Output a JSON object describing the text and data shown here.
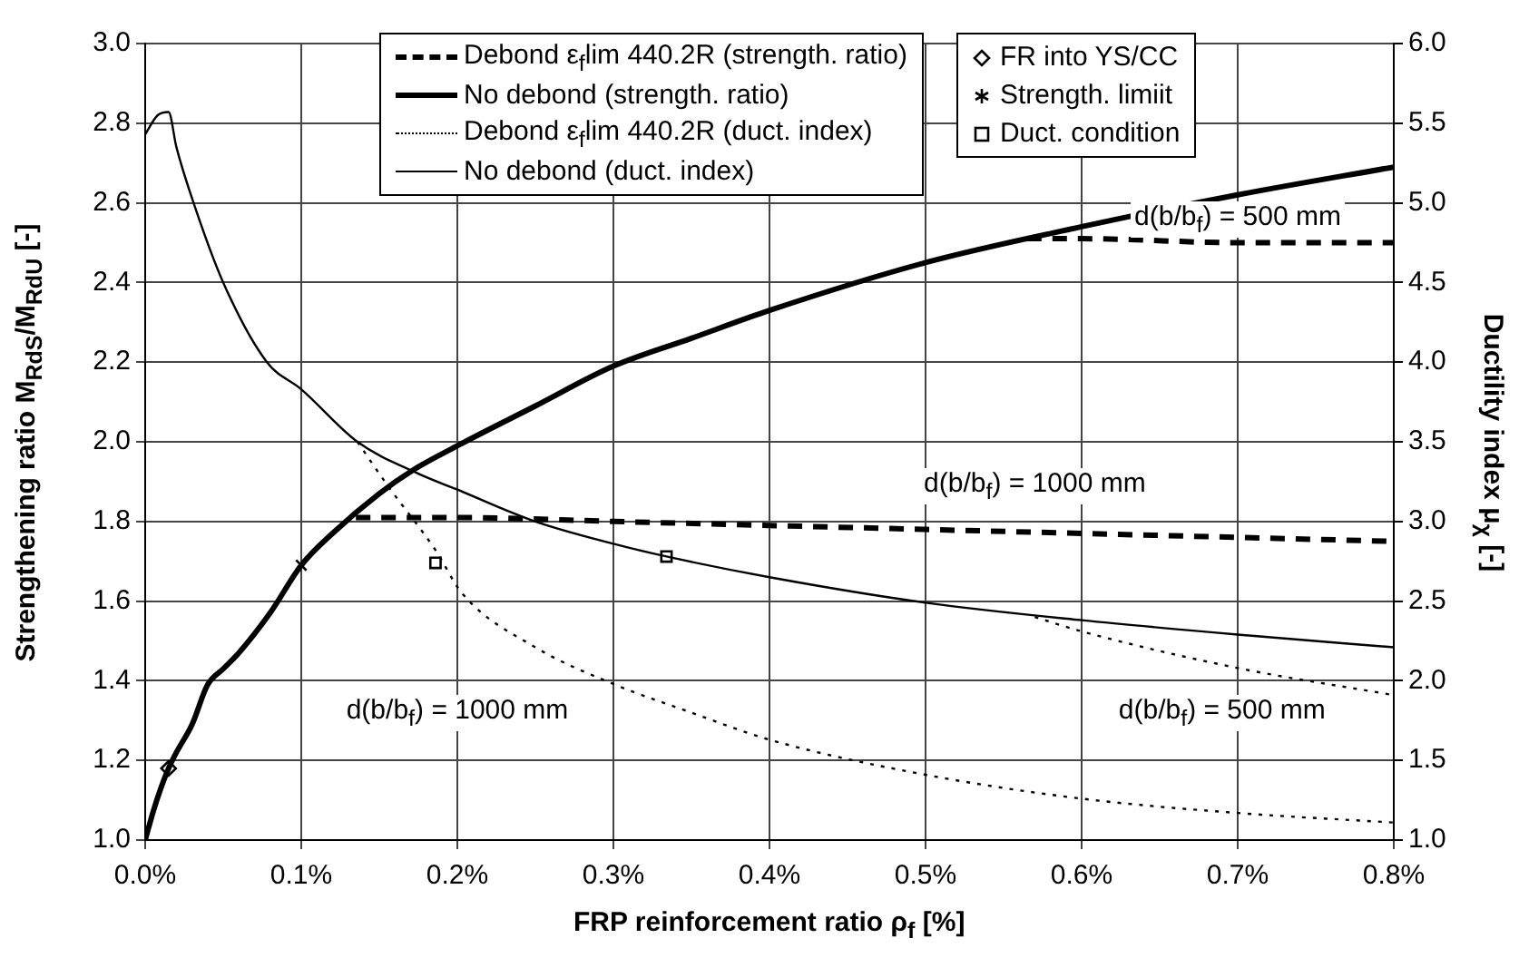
{
  "chart_data": {
    "type": "line",
    "xlabel": "FRP reinforcement ratio ρ$_{f}$ [%]",
    "ylabel": "Strengthening ratio M$_{RdS}$/M$_{RdU}$ [-]",
    "y2label": "Ductility index μ$_{χ}$ [-]",
    "xlim": [
      0,
      0.8
    ],
    "xticks": [
      {
        "value": 0,
        "label": "0.0%"
      },
      {
        "value": 0.1,
        "label": "0.1%"
      },
      {
        "value": 0.2,
        "label": "0.2%"
      },
      {
        "value": 0.3,
        "label": "0.3%"
      },
      {
        "value": 0.4,
        "label": "0.4%"
      },
      {
        "value": 0.5,
        "label": "0.5%"
      },
      {
        "value": 0.6,
        "label": "0.6%"
      },
      {
        "value": 0.7,
        "label": "0.7%"
      },
      {
        "value": 0.8,
        "label": "0.8%"
      }
    ],
    "ylim": [
      1,
      3
    ],
    "yticks": [
      {
        "value": 1,
        "label": "1.0"
      },
      {
        "value": 1.2,
        "label": "1.2"
      },
      {
        "value": 1.4,
        "label": "1.4"
      },
      {
        "value": 1.6,
        "label": "1.6"
      },
      {
        "value": 1.8,
        "label": "1.8"
      },
      {
        "value": 2,
        "label": "2.0"
      },
      {
        "value": 2.2,
        "label": "2.2"
      },
      {
        "value": 2.4,
        "label": "2.4"
      },
      {
        "value": 2.6,
        "label": "2.6"
      },
      {
        "value": 2.8,
        "label": "2.8"
      },
      {
        "value": 3,
        "label": "3.0"
      }
    ],
    "y2lim": [
      1,
      6
    ],
    "y2ticks": [
      {
        "value": 1,
        "label": "1.0"
      },
      {
        "value": 1.5,
        "label": "1.5"
      },
      {
        "value": 2,
        "label": "2.0"
      },
      {
        "value": 2.5,
        "label": "2.5"
      },
      {
        "value": 3,
        "label": "3.0"
      },
      {
        "value": 3.5,
        "label": "3.5"
      },
      {
        "value": 4,
        "label": "4.0"
      },
      {
        "value": 4.5,
        "label": "4.5"
      },
      {
        "value": 5,
        "label": "5.0"
      },
      {
        "value": 5.5,
        "label": "5.5"
      },
      {
        "value": 6,
        "label": "6.0"
      }
    ],
    "grid": true,
    "legend": "top",
    "series": [
      {
        "name": "Debond ε$_{f}$lim 440.2R (strength. ratio)",
        "color": "#000000",
        "line_style": "dashed",
        "marker": "none",
        "x": [
          0.135,
          0.2,
          0.3,
          0.4,
          0.5,
          0.6,
          0.7,
          0.8,
          0.7,
          0.565,
          0.6,
          0.7,
          0.8
        ],
        "values": [
          1.81,
          1.81,
          1.8,
          1.79,
          1.78,
          1.77,
          1.76,
          1.75,
          null,
          2.51,
          2.51,
          2.5,
          2.5
        ]
      },
      {
        "name": "No debond (strength. ratio)",
        "color": "#000000",
        "line_style": "solid",
        "marker": "none",
        "x": [
          0,
          0.005,
          0.01,
          0.015,
          0.02,
          0.03,
          0.04,
          0.05,
          0.06,
          0.08,
          0.1,
          0.12,
          0.15,
          0.172,
          0.2,
          0.25,
          0.3,
          0.35,
          0.4,
          0.5,
          0.6,
          0.7,
          0.8
        ],
        "values": [
          1,
          1.07,
          1.13,
          1.18,
          1.22,
          1.29,
          1.39,
          1.43,
          1.47,
          1.57,
          1.69,
          1.77,
          1.87,
          1.93,
          1.99,
          2.09,
          2.19,
          2.26,
          2.33,
          2.45,
          2.54,
          2.62,
          2.69
        ]
      },
      {
        "name": "Debond ε$_{f}$lim 440.2R (duct. index)",
        "axis": "y2",
        "color": "#000000",
        "line_style": "dotted",
        "marker": "none",
        "x": [
          0.136,
          0.155,
          0.186,
          0.203,
          0.25,
          0.3,
          0.35,
          0.4,
          0.5,
          0.6,
          0.7,
          0.8,
          0.7,
          0.57,
          0.6,
          0.7,
          0.8
        ],
        "values": [
          3.5,
          3.23,
          2.82,
          2.55,
          2.21,
          1.98,
          1.8,
          1.63,
          1.41,
          1.26,
          1.17,
          1.11,
          null,
          2.4,
          2.31,
          2.08,
          1.91
        ]
      },
      {
        "name": "No debond (duct. index)",
        "axis": "y2",
        "color": "#000000",
        "line_style": "solid",
        "marker": "none",
        "x": [
          0,
          0.008,
          0.015,
          0.02,
          0.031,
          0.05,
          0.078,
          0.1,
          0.136,
          0.175,
          0.2,
          0.25,
          0.3,
          0.334,
          0.4,
          0.5,
          0.6,
          0.7,
          0.8
        ],
        "values": [
          5.43,
          5.55,
          5.57,
          5.35,
          5,
          4.5,
          4,
          3.83,
          3.5,
          3.3,
          3.2,
          3,
          2.86,
          2.78,
          2.65,
          2.49,
          2.38,
          2.29,
          2.21
        ]
      },
      {
        "name": "FR into YS/CC",
        "type": "scatter",
        "color": "#000000",
        "marker": "diamond",
        "x": [
          0.015
        ],
        "values": [
          1.18
        ]
      },
      {
        "name": "Strength. limiit",
        "type": "scatter",
        "color": "#000000",
        "marker": "cross",
        "x": [
          0.1
        ],
        "values": [
          1.69
        ]
      },
      {
        "name": "Duct. condition",
        "type": "scatter",
        "axis": "y2",
        "color": "#000000",
        "marker": "square",
        "x": [
          0.186,
          0.334
        ],
        "values": [
          2.74,
          2.78
        ]
      }
    ],
    "annotations": [
      "d(b/b$_{f}$) = 500 mm",
      "d(b/b$_{f}$) = 1000 mm",
      "d(b/b$_{f}$) = 1000 mm",
      "d(b/b$_{f}$) = 500 mm"
    ]
  }
}
